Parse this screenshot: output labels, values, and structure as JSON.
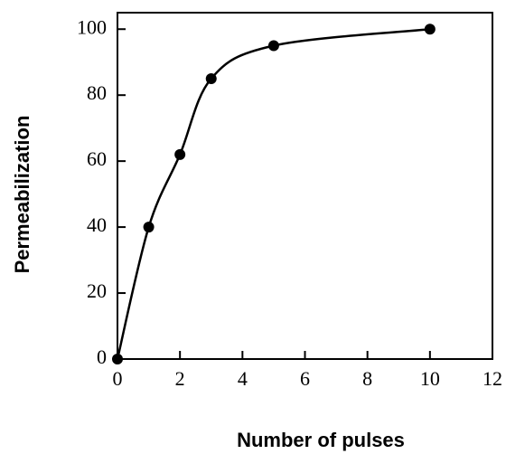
{
  "chart_data": {
    "type": "line",
    "smooth": true,
    "markers": true,
    "x_label": "Number of pulses",
    "y_label": "Permeabilization",
    "x": [
      0,
      1,
      2,
      3,
      5,
      10
    ],
    "series": [
      {
        "color": "#000000",
        "values": [
          0,
          40,
          62,
          85,
          95,
          100
        ]
      }
    ],
    "xlim": [
      0,
      12
    ],
    "xticks": [
      0,
      2,
      4,
      6,
      8,
      10,
      12
    ],
    "ylim": [
      0,
      105
    ],
    "yticks": [
      0,
      20,
      40,
      60,
      80,
      100
    ],
    "grid": false
  }
}
